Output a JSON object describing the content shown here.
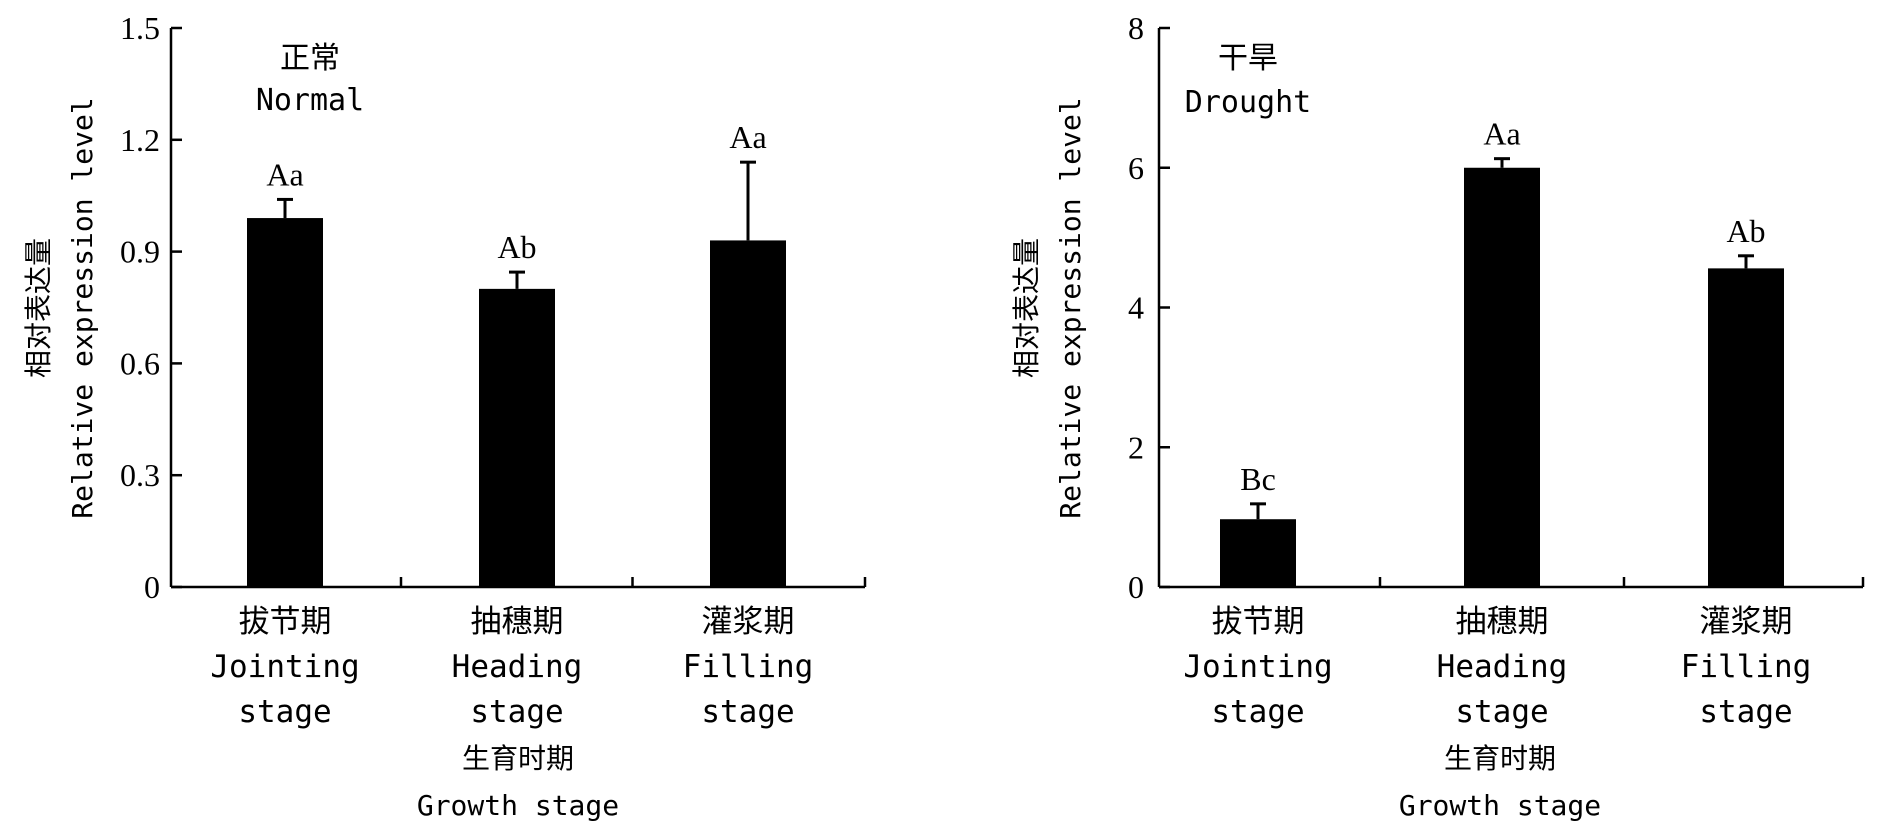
{
  "colors": {
    "bar": "#000000",
    "axis": "#000000",
    "background": "#ffffff"
  },
  "chart_data": [
    {
      "type": "bar",
      "title_lines": [
        "正常",
        "Normal"
      ],
      "ylabel_lines": [
        "相对表达量",
        "Relative expression level"
      ],
      "xlabel_lines": [
        "生育时期",
        "Growth stage"
      ],
      "categories": [
        [
          "拔节期",
          "Jointing",
          "stage"
        ],
        [
          "抽穗期",
          "Heading",
          "stage"
        ],
        [
          "灌浆期",
          "Filling",
          "stage"
        ]
      ],
      "values": [
        0.99,
        0.8,
        0.93
      ],
      "errors": [
        0.05,
        0.045,
        0.21
      ],
      "significance": [
        "Aa",
        "Ab",
        "Aa"
      ],
      "ylim": [
        0,
        1.5
      ],
      "yticks": [
        "0",
        "0.3",
        "0.6",
        "0.9",
        "1.2",
        "1.5"
      ],
      "ytick_values": [
        0,
        0.3,
        0.6,
        0.9,
        1.2,
        1.5
      ],
      "grid": false
    },
    {
      "type": "bar",
      "title_lines": [
        "干旱",
        "Drought"
      ],
      "ylabel_lines": [
        "相对表达量",
        "Relative expression level"
      ],
      "xlabel_lines": [
        "生育时期",
        "Growth stage"
      ],
      "categories": [
        [
          "拔节期",
          "Jointing",
          "stage"
        ],
        [
          "抽穗期",
          "Heading",
          "stage"
        ],
        [
          "灌浆期",
          "Filling",
          "stage"
        ]
      ],
      "values": [
        0.97,
        6.0,
        4.56
      ],
      "errors": [
        0.22,
        0.13,
        0.18
      ],
      "significance": [
        "Bc",
        "Aa",
        "Ab"
      ],
      "ylim": [
        0,
        8
      ],
      "yticks": [
        "0",
        "2",
        "4",
        "6",
        "8"
      ],
      "ytick_values": [
        0,
        2,
        4,
        6,
        8
      ],
      "grid": false
    }
  ]
}
